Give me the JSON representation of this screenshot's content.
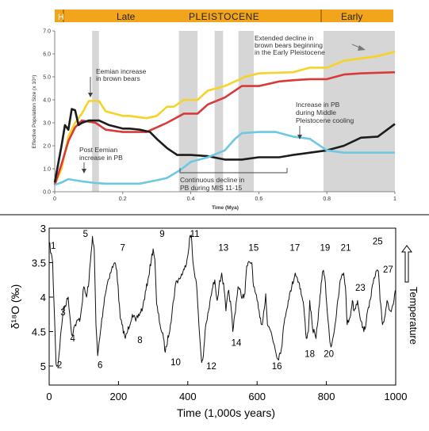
{
  "top_chart": {
    "banner": {
      "h": "H",
      "late": "Late",
      "pleistocene": "PLEISTOCENE",
      "early": "Early",
      "color": "#f2a51a"
    },
    "ylabel": "Effective Population Size (x 10⁵)",
    "xlabel": "Time (Mya)",
    "annotations": {
      "eemian_brown": [
        "Eemian increase",
        "in brown bears"
      ],
      "post_eemian": [
        "Post Eemian",
        "increase in PB"
      ],
      "extended": [
        "Extended decline in",
        "brown bears beginning",
        "in the Early Pleistocene"
      ],
      "pb_increase": [
        "Increase in PB",
        "during Middle",
        "Pleistocene cooling"
      ],
      "continuous": [
        "Continuous decline in",
        "PB during MIS 11-15"
      ]
    }
  },
  "chart_data": [
    {
      "type": "line",
      "xlim": [
        0,
        1
      ],
      "ylim": [
        0,
        7
      ],
      "xticks": [
        "0",
        "0.2",
        "0.4",
        "0.6",
        "0.8",
        "1"
      ],
      "yticks": [
        "0.0",
        "1.0",
        "2.0",
        "3.0",
        "4.0",
        "5.0",
        "6.0",
        "7.0"
      ],
      "xlabel": "Time (Mya)",
      "ylabel": "Effective Population Size (x 10⁵)",
      "grid": false,
      "shaded_intervals": [
        [
          0.11,
          0.13
        ],
        [
          0.365,
          0.42
        ],
        [
          0.47,
          0.495
        ],
        [
          0.54,
          0.585
        ],
        [
          0.79,
          1.0
        ]
      ],
      "series": [
        {
          "color": "#f5d327",
          "points": [
            [
              0,
              0.3
            ],
            [
              0.02,
              1.0
            ],
            [
              0.04,
              2.4
            ],
            [
              0.06,
              3.0
            ],
            [
              0.08,
              3.4
            ],
            [
              0.1,
              3.95
            ],
            [
              0.13,
              3.95
            ],
            [
              0.15,
              3.5
            ],
            [
              0.2,
              3.3
            ],
            [
              0.22,
              3.3
            ],
            [
              0.27,
              3.2
            ],
            [
              0.3,
              3.3
            ],
            [
              0.33,
              3.7
            ],
            [
              0.35,
              3.7
            ],
            [
              0.38,
              4.0
            ],
            [
              0.42,
              4.0
            ],
            [
              0.45,
              4.4
            ],
            [
              0.5,
              4.6
            ],
            [
              0.56,
              5.0
            ],
            [
              0.6,
              5.15
            ],
            [
              0.7,
              5.2
            ],
            [
              0.75,
              5.4
            ],
            [
              0.8,
              5.4
            ],
            [
              0.85,
              5.7
            ],
            [
              0.9,
              5.8
            ],
            [
              0.95,
              5.9
            ],
            [
              1.0,
              6.1
            ]
          ]
        },
        {
          "color": "#d83a3a",
          "points": [
            [
              0,
              0.3
            ],
            [
              0.02,
              1.2
            ],
            [
              0.04,
              2.2
            ],
            [
              0.06,
              2.8
            ],
            [
              0.08,
              3.1
            ],
            [
              0.12,
              3.0
            ],
            [
              0.15,
              2.7
            ],
            [
              0.2,
              2.6
            ],
            [
              0.22,
              2.6
            ],
            [
              0.27,
              2.6
            ],
            [
              0.3,
              2.8
            ],
            [
              0.33,
              3.0
            ],
            [
              0.38,
              3.4
            ],
            [
              0.42,
              3.4
            ],
            [
              0.45,
              3.8
            ],
            [
              0.5,
              4.1
            ],
            [
              0.55,
              4.6
            ],
            [
              0.6,
              4.6
            ],
            [
              0.66,
              4.8
            ],
            [
              0.7,
              4.85
            ],
            [
              0.75,
              4.9
            ],
            [
              0.8,
              4.9
            ],
            [
              0.85,
              5.1
            ],
            [
              0.9,
              5.15
            ],
            [
              1.0,
              5.2
            ]
          ]
        },
        {
          "color": "#1c1c1c",
          "points": [
            [
              0,
              0.4
            ],
            [
              0.02,
              2.0
            ],
            [
              0.03,
              2.9
            ],
            [
              0.04,
              2.7
            ],
            [
              0.05,
              3.6
            ],
            [
              0.06,
              3.55
            ],
            [
              0.07,
              2.9
            ],
            [
              0.08,
              3.0
            ],
            [
              0.1,
              3.1
            ],
            [
              0.13,
              3.1
            ],
            [
              0.16,
              2.9
            ],
            [
              0.2,
              2.75
            ],
            [
              0.22,
              2.75
            ],
            [
              0.25,
              2.7
            ],
            [
              0.28,
              2.6
            ],
            [
              0.3,
              2.3
            ],
            [
              0.33,
              1.9
            ],
            [
              0.36,
              1.6
            ],
            [
              0.4,
              1.6
            ],
            [
              0.45,
              1.55
            ],
            [
              0.5,
              1.4
            ],
            [
              0.55,
              1.4
            ],
            [
              0.6,
              1.5
            ],
            [
              0.66,
              1.5
            ],
            [
              0.7,
              1.6
            ],
            [
              0.75,
              1.7
            ],
            [
              0.8,
              1.8
            ],
            [
              0.85,
              2.0
            ],
            [
              0.9,
              2.35
            ],
            [
              0.95,
              2.4
            ],
            [
              1.0,
              2.95
            ]
          ]
        },
        {
          "color": "#6fc7e3",
          "points": [
            [
              0,
              0.3
            ],
            [
              0.02,
              0.4
            ],
            [
              0.04,
              0.55
            ],
            [
              0.06,
              0.5
            ],
            [
              0.08,
              0.45
            ],
            [
              0.12,
              0.38
            ],
            [
              0.15,
              0.35
            ],
            [
              0.2,
              0.35
            ],
            [
              0.25,
              0.35
            ],
            [
              0.3,
              0.5
            ],
            [
              0.33,
              0.6
            ],
            [
              0.37,
              0.95
            ],
            [
              0.4,
              1.3
            ],
            [
              0.45,
              1.5
            ],
            [
              0.5,
              1.8
            ],
            [
              0.53,
              2.3
            ],
            [
              0.55,
              2.55
            ],
            [
              0.6,
              2.6
            ],
            [
              0.65,
              2.6
            ],
            [
              0.7,
              2.4
            ],
            [
              0.75,
              2.3
            ],
            [
              0.8,
              1.8
            ],
            [
              0.85,
              1.7
            ],
            [
              0.9,
              1.7
            ],
            [
              0.95,
              1.7
            ],
            [
              1.0,
              1.7
            ]
          ]
        }
      ]
    },
    {
      "type": "line",
      "xlim": [
        0,
        1000
      ],
      "ylim": [
        5,
        3
      ],
      "y_inverted": true,
      "xticks": [
        "0",
        "200",
        "400",
        "600",
        "800",
        "1000"
      ],
      "yticks": [
        "3",
        "3.5",
        "4",
        "4.5",
        "5"
      ],
      "xlabel": "Time (1,000s years)",
      "ylabel": "δ¹⁸O (‰)",
      "side_label": "Temperature",
      "grid": false,
      "series": [
        {
          "color": "#111111",
          "points": [
            [
              0,
              3.2
            ],
            [
              10,
              3.5
            ],
            [
              20,
              4.97
            ],
            [
              25,
              5.0
            ],
            [
              40,
              4.2
            ],
            [
              55,
              4.0
            ],
            [
              65,
              4.55
            ],
            [
              75,
              4.4
            ],
            [
              90,
              4.3
            ],
            [
              100,
              3.85
            ],
            [
              108,
              4.0
            ],
            [
              115,
              3.75
            ],
            [
              125,
              3.12
            ],
            [
              130,
              3.3
            ],
            [
              135,
              4.4
            ],
            [
              140,
              4.85
            ],
            [
              148,
              4.5
            ],
            [
              160,
              4.0
            ],
            [
              170,
              3.75
            ],
            [
              180,
              3.6
            ],
            [
              190,
              3.5
            ],
            [
              195,
              3.6
            ],
            [
              205,
              4.3
            ],
            [
              210,
              4.4
            ],
            [
              220,
              4.6
            ],
            [
              240,
              4.25
            ],
            [
              250,
              4.35
            ],
            [
              270,
              4.15
            ],
            [
              285,
              3.75
            ],
            [
              295,
              3.45
            ],
            [
              300,
              3.3
            ],
            [
              305,
              3.45
            ],
            [
              310,
              4.1
            ],
            [
              320,
              4.4
            ],
            [
              330,
              4.6
            ],
            [
              335,
              4.8
            ],
            [
              350,
              4.4
            ],
            [
              365,
              3.8
            ],
            [
              380,
              3.7
            ],
            [
              390,
              3.6
            ],
            [
              400,
              3.4
            ],
            [
              405,
              3.15
            ],
            [
              410,
              3.1
            ],
            [
              415,
              3.5
            ],
            [
              425,
              3.8
            ],
            [
              432,
              4.4
            ],
            [
              440,
              4.95
            ],
            [
              445,
              4.85
            ],
            [
              450,
              4.5
            ],
            [
              460,
              4.2
            ],
            [
              470,
              3.9
            ],
            [
              478,
              3.75
            ],
            [
              485,
              4.05
            ],
            [
              490,
              3.85
            ],
            [
              498,
              3.65
            ],
            [
              505,
              3.9
            ],
            [
              510,
              4.2
            ],
            [
              518,
              3.9
            ],
            [
              525,
              4.15
            ],
            [
              530,
              4.5
            ],
            [
              545,
              3.85
            ],
            [
              558,
              4.0
            ],
            [
              565,
              3.95
            ],
            [
              570,
              3.55
            ],
            [
              580,
              3.5
            ],
            [
              585,
              3.5
            ],
            [
              590,
              3.85
            ],
            [
              600,
              4.05
            ],
            [
              608,
              4.3
            ],
            [
              615,
              4.4
            ],
            [
              625,
              3.95
            ],
            [
              630,
              4.4
            ],
            [
              640,
              4.5
            ],
            [
              650,
              4.7
            ],
            [
              660,
              4.9
            ],
            [
              670,
              4.75
            ],
            [
              680,
              4.3
            ],
            [
              690,
              4.05
            ],
            [
              700,
              3.85
            ],
            [
              710,
              3.65
            ],
            [
              722,
              3.8
            ],
            [
              735,
              4.15
            ],
            [
              742,
              4.6
            ],
            [
              748,
              4.5
            ],
            [
              752,
              4.05
            ],
            [
              760,
              4.45
            ],
            [
              770,
              4.6
            ],
            [
              780,
              4.1
            ],
            [
              785,
              3.8
            ],
            [
              790,
              3.62
            ],
            [
              795,
              3.7
            ],
            [
              805,
              4.35
            ],
            [
              810,
              4.65
            ],
            [
              815,
              4.7
            ],
            [
              825,
              4.4
            ],
            [
              835,
              4.0
            ],
            [
              840,
              3.75
            ],
            [
              850,
              3.65
            ],
            [
              855,
              3.85
            ],
            [
              860,
              4.4
            ],
            [
              868,
              4.3
            ],
            [
              875,
              4.05
            ],
            [
              880,
              4.2
            ],
            [
              890,
              4.05
            ],
            [
              900,
              4.35
            ],
            [
              908,
              4.5
            ],
            [
              915,
              4.35
            ],
            [
              925,
              4.05
            ],
            [
              935,
              3.8
            ],
            [
              945,
              3.62
            ],
            [
              950,
              3.62
            ],
            [
              955,
              4.05
            ],
            [
              962,
              4.4
            ],
            [
              968,
              4.3
            ],
            [
              975,
              4.05
            ],
            [
              985,
              4.2
            ],
            [
              995,
              4.05
            ],
            [
              1000,
              3.9
            ]
          ]
        }
      ],
      "stage_labels": [
        {
          "text": "1",
          "x": 12,
          "y": 3.25
        },
        {
          "text": "2",
          "x": 30,
          "y": 4.98
        },
        {
          "text": "3",
          "x": 40,
          "y": 4.22
        },
        {
          "text": "4",
          "x": 68,
          "y": 4.6
        },
        {
          "text": "5",
          "x": 105,
          "y": 3.08
        },
        {
          "text": "6",
          "x": 147,
          "y": 4.98
        },
        {
          "text": "7",
          "x": 212,
          "y": 3.28
        },
        {
          "text": "8",
          "x": 262,
          "y": 4.62
        },
        {
          "text": "9",
          "x": 326,
          "y": 3.08
        },
        {
          "text": "10",
          "x": 365,
          "y": 4.94
        },
        {
          "text": "11",
          "x": 420,
          "y": 3.08
        },
        {
          "text": "12",
          "x": 468,
          "y": 5.0
        },
        {
          "text": "13",
          "x": 503,
          "y": 3.28
        },
        {
          "text": "14",
          "x": 540,
          "y": 4.66
        },
        {
          "text": "15",
          "x": 590,
          "y": 3.28
        },
        {
          "text": "16",
          "x": 657,
          "y": 5.0
        },
        {
          "text": "17",
          "x": 709,
          "y": 3.28
        },
        {
          "text": "18",
          "x": 752,
          "y": 4.82
        },
        {
          "text": "19",
          "x": 796,
          "y": 3.28
        },
        {
          "text": "20",
          "x": 807,
          "y": 4.82
        },
        {
          "text": "21",
          "x": 856,
          "y": 3.28
        },
        {
          "text": "23",
          "x": 898,
          "y": 3.86
        },
        {
          "text": "25",
          "x": 948,
          "y": 3.19
        },
        {
          "text": "27",
          "x": 978,
          "y": 3.6
        }
      ]
    }
  ]
}
